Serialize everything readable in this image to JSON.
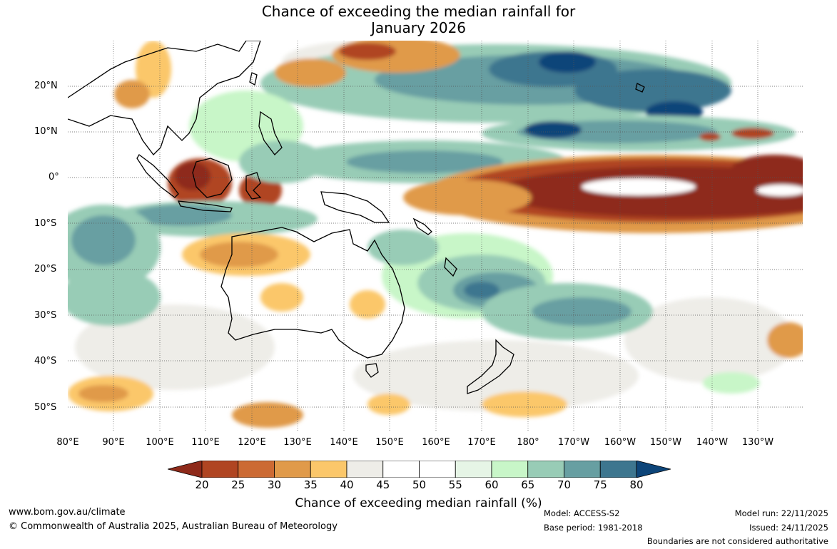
{
  "title": {
    "line1": "Chance of exceeding the median rainfall for",
    "line2": "January 2026"
  },
  "axes": {
    "lat_labels": [
      "20°N",
      "10°N",
      "0°",
      "10°S",
      "20°S",
      "30°S",
      "40°S",
      "50°S"
    ],
    "lon_labels": [
      "80°E",
      "90°E",
      "100°E",
      "110°E",
      "120°E",
      "130°E",
      "140°E",
      "150°E",
      "160°E",
      "170°E",
      "180°",
      "170°W",
      "160°W",
      "150°W",
      "140°W",
      "130°W"
    ]
  },
  "colorbar": {
    "ticks": [
      "20",
      "25",
      "30",
      "35",
      "40",
      "45",
      "50",
      "55",
      "60",
      "65",
      "70",
      "75",
      "80"
    ],
    "colors": [
      "#8e2a1a",
      "#b04522",
      "#cc6a33",
      "#e09a4a",
      "#fbc76a",
      "#eeede8",
      "#ffffff",
      "#ffffff",
      "#e6f5e6",
      "#c8f6c8",
      "#98ccb6",
      "#679fa2",
      "#3d768f",
      "#0d4579"
    ],
    "label": "Chance of exceeding median rainfall (%)"
  },
  "footer": {
    "website": "www.bom.gov.au/climate",
    "copyright": "© Commonwealth of Australia 2025, Australian Bureau of Meteorology",
    "model": "Model: ACCESS-S2",
    "base_period": "Base period: 1981-2018",
    "model_run": "Model run: 22/11/2025",
    "issued": "Issued: 24/11/2025",
    "disclaimer": "Boundaries are not considered authoritative"
  }
}
